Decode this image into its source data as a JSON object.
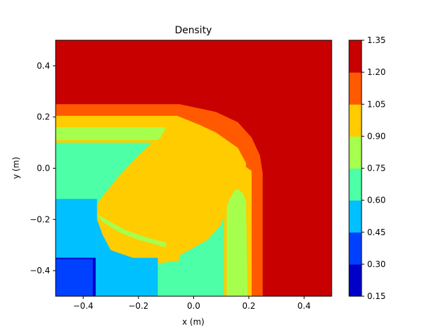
{
  "chart_data": {
    "type": "heatmap",
    "title": "Density",
    "xlabel": "x (m)",
    "ylabel": "y (m)",
    "xlim": [
      -0.5,
      0.5
    ],
    "ylim": [
      -0.5,
      0.5
    ],
    "x_ticks": [
      "−0.4",
      "−0.2",
      "0.0",
      "0.2",
      "0.4"
    ],
    "x_tick_values": [
      -0.4,
      -0.2,
      0.0,
      0.2,
      0.4
    ],
    "y_ticks": [
      "0.4",
      "0.2",
      "0.0",
      "−0.2",
      "−0.4"
    ],
    "y_tick_values": [
      0.4,
      0.2,
      0.0,
      -0.2,
      -0.4
    ],
    "colorbar": {
      "levels": [
        0.15,
        0.3,
        0.45,
        0.6,
        0.75,
        0.9,
        1.05,
        1.2,
        1.35
      ],
      "tick_labels": [
        "0.15",
        "0.30",
        "0.45",
        "0.60",
        "0.75",
        "0.90",
        "1.05",
        "1.20",
        "1.35"
      ],
      "colors": [
        "#0000c8",
        "#0040ff",
        "#00c0ff",
        "#4dffa6",
        "#a6ff4d",
        "#ffcc00",
        "#ff5a00",
        "#c80000"
      ]
    },
    "regions": [
      {
        "level": 7,
        "points": [
          [
            -0.5,
            0.5
          ],
          [
            0.5,
            0.5
          ],
          [
            0.5,
            -0.5
          ],
          [
            -0.5,
            -0.5
          ]
        ]
      },
      {
        "level": 6,
        "points": [
          [
            -0.5,
            0.25
          ],
          [
            -0.05,
            0.25
          ],
          [
            0.08,
            0.22
          ],
          [
            0.16,
            0.18
          ],
          [
            0.21,
            0.12
          ],
          [
            0.24,
            0.05
          ],
          [
            0.25,
            -0.02
          ],
          [
            0.25,
            -0.5
          ],
          [
            -0.5,
            -0.5
          ]
        ]
      },
      {
        "level": 5,
        "points": [
          [
            -0.5,
            0.205
          ],
          [
            -0.06,
            0.205
          ],
          [
            0.02,
            0.17
          ],
          [
            0.1,
            0.07
          ],
          [
            0.17,
            0.02
          ],
          [
            0.21,
            -0.01
          ],
          [
            0.21,
            -0.5
          ],
          [
            -0.5,
            -0.5
          ]
        ]
      },
      {
        "level": 4,
        "points": [
          [
            -0.5,
            0.16
          ],
          [
            -0.1,
            0.16
          ],
          [
            -0.1,
            0.11
          ],
          [
            -0.5,
            0.11
          ]
        ]
      },
      {
        "level": 4,
        "points": [
          [
            0.12,
            -0.5
          ],
          [
            0.12,
            -0.12
          ],
          [
            0.14,
            -0.09
          ],
          [
            0.16,
            -0.08
          ],
          [
            0.18,
            -0.1
          ],
          [
            0.19,
            -0.13
          ],
          [
            0.195,
            -0.5
          ]
        ]
      },
      {
        "level": 4,
        "points": [
          [
            -0.35,
            -0.18
          ],
          [
            -0.3,
            -0.21
          ],
          [
            -0.25,
            -0.24
          ],
          [
            -0.2,
            -0.26
          ],
          [
            -0.14,
            -0.28
          ],
          [
            -0.1,
            -0.29
          ],
          [
            -0.1,
            -0.31
          ],
          [
            -0.13,
            -0.3
          ],
          [
            -0.2,
            -0.28
          ],
          [
            -0.27,
            -0.25
          ],
          [
            -0.33,
            -0.21
          ]
        ]
      },
      {
        "level": 3,
        "points": [
          [
            -0.5,
            0.1
          ],
          [
            -0.15,
            0.1
          ],
          [
            -0.2,
            0.05
          ],
          [
            -0.27,
            -0.03
          ],
          [
            -0.33,
            -0.11
          ],
          [
            -0.35,
            -0.14
          ],
          [
            -0.35,
            -0.5
          ],
          [
            0.11,
            -0.5
          ],
          [
            0.11,
            -0.12
          ],
          [
            0.05,
            -0.15
          ],
          [
            -0.02,
            -0.2
          ],
          [
            -0.05,
            -0.25
          ],
          [
            -0.05,
            -0.36
          ],
          [
            -0.18,
            -0.38
          ],
          [
            -0.3,
            -0.38
          ],
          [
            -0.35,
            -0.32
          ],
          [
            -0.36,
            -0.25
          ],
          [
            -0.35,
            -0.14
          ],
          [
            -0.5,
            -0.12
          ]
        ]
      },
      {
        "level": 5,
        "points": [
          [
            -0.33,
            -0.11
          ],
          [
            -0.27,
            -0.12
          ],
          [
            -0.2,
            -0.08
          ],
          [
            -0.1,
            -0.08
          ],
          [
            -0.09,
            -0.12
          ],
          [
            -0.09,
            -0.2
          ],
          [
            -0.1,
            -0.3
          ],
          [
            -0.1,
            -0.34
          ],
          [
            -0.05,
            -0.34
          ],
          [
            0.05,
            -0.28
          ],
          [
            0.1,
            -0.22
          ],
          [
            0.13,
            -0.12
          ],
          [
            0.17,
            -0.05
          ],
          [
            0.19,
            -0.02
          ],
          [
            0.19,
            0.02
          ],
          [
            0.16,
            0.08
          ],
          [
            0.08,
            0.14
          ],
          [
            0.02,
            0.17
          ],
          [
            -0.06,
            0.175
          ],
          [
            -0.1,
            0.16
          ],
          [
            -0.12,
            0.12
          ],
          [
            -0.2,
            0.05
          ],
          [
            -0.27,
            -0.03
          ]
        ]
      },
      {
        "level": 2,
        "points": [
          [
            -0.5,
            -0.12
          ],
          [
            -0.35,
            -0.12
          ],
          [
            -0.35,
            -0.5
          ],
          [
            -0.5,
            -0.5
          ]
        ]
      },
      {
        "level": 2,
        "points": [
          [
            -0.35,
            -0.2
          ],
          [
            -0.33,
            -0.26
          ],
          [
            -0.3,
            -0.32
          ],
          [
            -0.22,
            -0.35
          ],
          [
            -0.13,
            -0.35
          ],
          [
            -0.13,
            -0.5
          ],
          [
            -0.35,
            -0.5
          ]
        ]
      },
      {
        "level": 1,
        "points": [
          [
            -0.5,
            -0.35
          ],
          [
            -0.36,
            -0.35
          ],
          [
            -0.355,
            -0.5
          ],
          [
            -0.5,
            -0.5
          ]
        ]
      },
      {
        "level": 0,
        "points": [
          [
            -0.5,
            -0.35
          ],
          [
            -0.36,
            -0.35
          ],
          [
            -0.36,
            -0.355
          ],
          [
            -0.5,
            -0.355
          ]
        ]
      },
      {
        "level": 0,
        "points": [
          [
            -0.365,
            -0.35
          ],
          [
            -0.355,
            -0.35
          ],
          [
            -0.355,
            -0.5
          ],
          [
            -0.365,
            -0.5
          ]
        ]
      }
    ]
  }
}
